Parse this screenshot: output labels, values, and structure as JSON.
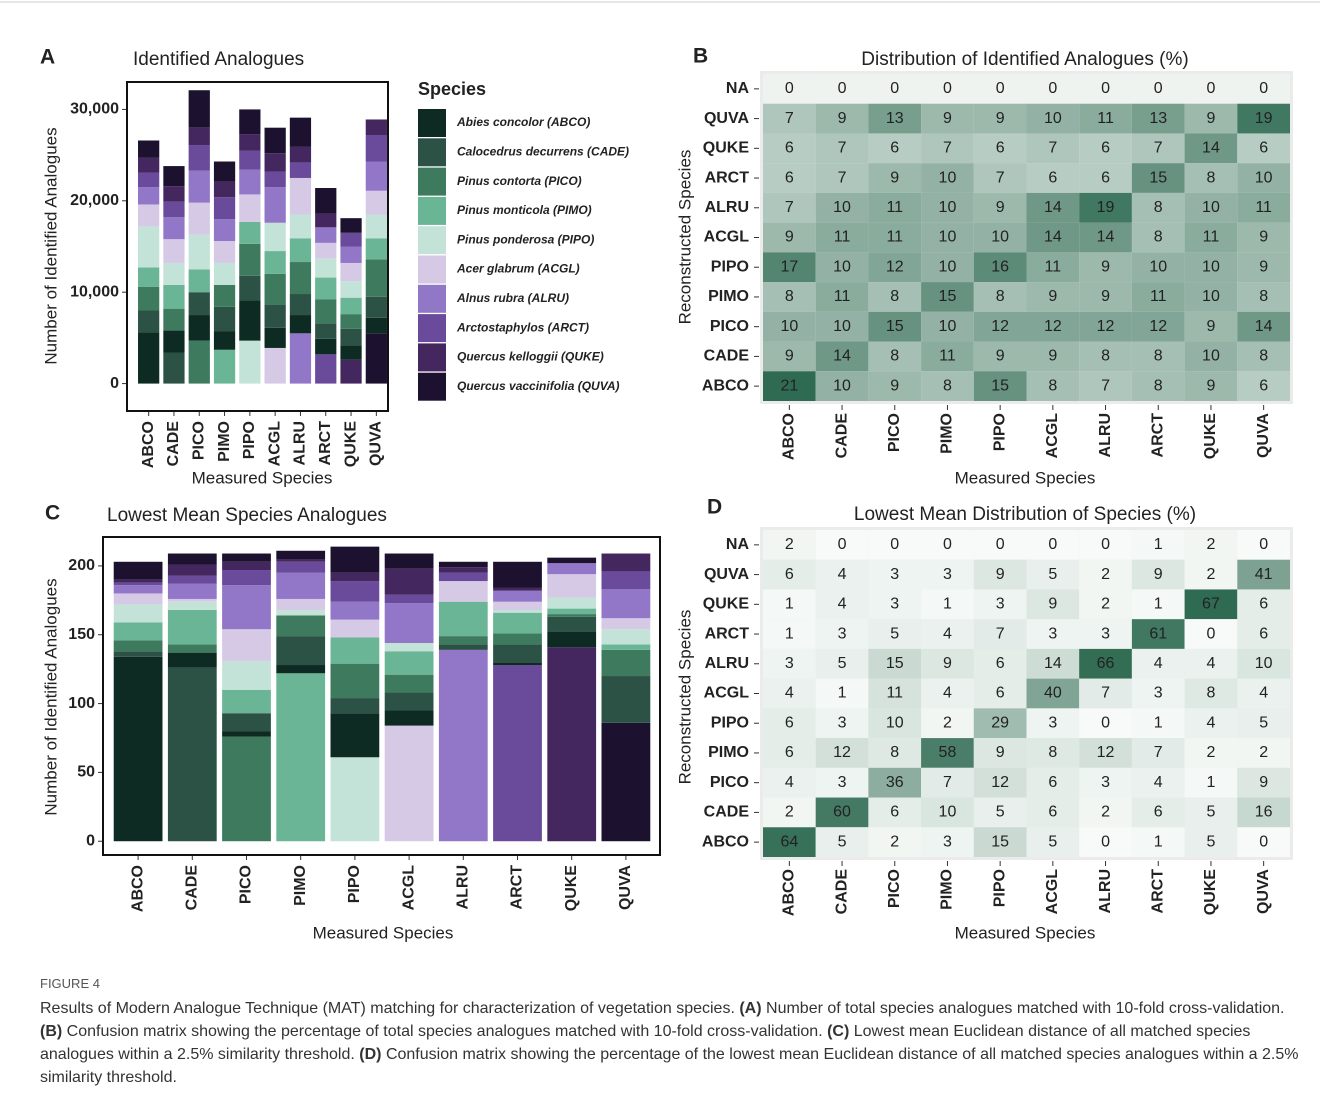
{
  "chart_data": [
    {
      "type": "stacked_bar",
      "panel": "A",
      "title": "Identified Analogues",
      "xlabel": "Measured Species",
      "ylabel": "Number of Identified Analogues",
      "categories": [
        "ABCO",
        "CADE",
        "PICO",
        "PIMO",
        "PIPO",
        "ACGL",
        "ALRU",
        "ARCT",
        "QUKE",
        "QUVA"
      ],
      "ylim": [
        -3000,
        33000
      ],
      "yticks": [
        0,
        {
          "value": 10000,
          "label": "10,000"
        },
        {
          "value": 20000,
          "label": "20,000"
        },
        {
          "value": 30000,
          "label": "30,000"
        }
      ],
      "legend_title": "Species",
      "series": [
        {
          "name": "Abies concolor (ABCO)",
          "color": "#0d2b22",
          "values": [
            5600,
            2400,
            2800,
            2000,
            4400,
            2200,
            2000,
            1700,
            1600,
            1700
          ]
        },
        {
          "name": "Calocedrus decurrens (CADE)",
          "color": "#2c5245",
          "values": [
            2400,
            3400,
            2500,
            2700,
            2700,
            2500,
            2300,
            1700,
            1800,
            2300
          ]
        },
        {
          "name": "Pinus contorta (PICO)",
          "color": "#3d7a5e",
          "values": [
            2600,
            2400,
            4700,
            2400,
            3500,
            3400,
            3500,
            2600,
            1600,
            4100
          ]
        },
        {
          "name": "Pinus monticola (PIMO)",
          "color": "#6ab596",
          "values": [
            2100,
            2600,
            2500,
            3700,
            2400,
            2500,
            2600,
            2400,
            1800,
            2300
          ]
        },
        {
          "name": "Pinus ponderosa (PIPO)",
          "color": "#c4e3d8",
          "values": [
            4500,
            2400,
            3800,
            2400,
            4700,
            3100,
            2600,
            2100,
            1800,
            2600
          ]
        },
        {
          "name": "Acer glabrum (ACGL)",
          "color": "#d5c9e6",
          "values": [
            2400,
            2600,
            3500,
            2400,
            3000,
            3900,
            4000,
            1700,
            2000,
            2600
          ]
        },
        {
          "name": "Alnus rubra (ALRU)",
          "color": "#9276c7",
          "values": [
            1900,
            2400,
            3500,
            2400,
            2700,
            3900,
            5500,
            1700,
            1800,
            3200
          ]
        },
        {
          "name": "Arctostaphylos (ARCT)",
          "color": "#6a4a9a",
          "values": [
            1600,
            1700,
            2800,
            2400,
            2100,
            1700,
            1700,
            3200,
            1500,
            2900
          ]
        },
        {
          "name": "Quercus kelloggii (QUKE)",
          "color": "#45275f",
          "values": [
            1600,
            1700,
            1900,
            1700,
            1800,
            2000,
            1700,
            1500,
            2600,
            1700
          ]
        },
        {
          "name": "Quercus vaccinifolia (QUVA)",
          "color": "#1c1230",
          "values": [
            1900,
            2200,
            4100,
            2200,
            2700,
            2800,
            3200,
            2800,
            1600,
            5500
          ]
        }
      ]
    },
    {
      "type": "heatmap",
      "panel": "B",
      "title": "Distribution of Identified Analogues (%)",
      "xlabel": "Measured Species",
      "ylabel": "Reconstructed Species",
      "x_categories": [
        "ABCO",
        "CADE",
        "PICO",
        "PIMO",
        "PIPO",
        "ACGL",
        "ALRU",
        "ARCT",
        "QUKE",
        "QUVA"
      ],
      "y_categories": [
        "NA",
        "QUVA",
        "QUKE",
        "ARCT",
        "ALRU",
        "ACGL",
        "PIPO",
        "PIMO",
        "PICO",
        "CADE",
        "ABCO"
      ],
      "colors": [
        "#eef3f0",
        "#2f6b52"
      ],
      "values": [
        [
          0,
          0,
          0,
          0,
          0,
          0,
          0,
          0,
          0,
          0
        ],
        [
          7,
          9,
          13,
          9,
          9,
          10,
          11,
          13,
          9,
          19
        ],
        [
          6,
          7,
          6,
          7,
          6,
          7,
          6,
          7,
          14,
          6
        ],
        [
          6,
          7,
          9,
          10,
          7,
          6,
          6,
          15,
          8,
          10
        ],
        [
          7,
          10,
          11,
          10,
          9,
          14,
          19,
          8,
          10,
          11
        ],
        [
          9,
          11,
          11,
          10,
          10,
          14,
          14,
          8,
          11,
          9
        ],
        [
          17,
          10,
          12,
          10,
          16,
          11,
          9,
          10,
          10,
          9
        ],
        [
          8,
          11,
          8,
          15,
          8,
          9,
          9,
          11,
          10,
          8
        ],
        [
          10,
          10,
          15,
          10,
          12,
          12,
          12,
          12,
          9,
          14
        ],
        [
          9,
          14,
          8,
          11,
          9,
          9,
          8,
          8,
          10,
          8
        ],
        [
          21,
          10,
          9,
          8,
          15,
          8,
          7,
          8,
          9,
          6
        ]
      ]
    },
    {
      "type": "stacked_bar",
      "panel": "C",
      "title": "Lowest Mean Species Analogues",
      "xlabel": "Measured Species",
      "ylabel": "Number of Identified Analogues",
      "categories": [
        "ABCO",
        "CADE",
        "PICO",
        "PIMO",
        "PIPO",
        "ACGL",
        "ALRU",
        "ARCT",
        "QUKE",
        "QUVA"
      ],
      "ylim": [
        -10,
        221
      ],
      "yticks": [
        0,
        50,
        100,
        150,
        200
      ],
      "series": [
        {
          "name": "Abies concolor (ABCO)",
          "color": "#0d2b22",
          "values": [
            134,
            11,
            4,
            6,
            32,
            11,
            0,
            2,
            11,
            0
          ]
        },
        {
          "name": "Calocedrus decurrens (CADE)",
          "color": "#2c5245",
          "values": [
            4,
            126,
            13,
            21,
            11,
            13,
            4,
            13,
            11,
            34
          ]
        },
        {
          "name": "Pinus contorta (PICO)",
          "color": "#3d7a5e",
          "values": [
            8,
            6,
            76,
            15,
            25,
            13,
            6,
            8,
            2,
            19
          ]
        },
        {
          "name": "Pinus monticola (PIMO)",
          "color": "#6ab596",
          "values": [
            13,
            25,
            17,
            122,
            19,
            17,
            25,
            15,
            4,
            4
          ]
        },
        {
          "name": "Pinus ponderosa (PIPO)",
          "color": "#c4e3d8",
          "values": [
            13,
            6,
            21,
            4,
            61,
            6,
            0,
            2,
            8,
            11
          ]
        },
        {
          "name": "Acer glabrum (ACGL)",
          "color": "#d5c9e6",
          "values": [
            8,
            2,
            23,
            8,
            13,
            84,
            15,
            6,
            17,
            8
          ]
        },
        {
          "name": "Alnus rubra (ALRU)",
          "color": "#9276c7",
          "values": [
            6,
            11,
            32,
            19,
            13,
            29,
            139,
            8,
            8,
            21
          ]
        },
        {
          "name": "Arctostaphylos (ARCT)",
          "color": "#6a4a9a",
          "values": [
            2,
            6,
            11,
            8,
            15,
            6,
            6,
            128,
            0,
            13
          ]
        },
        {
          "name": "Quercus kelloggii (QUKE)",
          "color": "#45275f",
          "values": [
            2,
            8,
            6,
            2,
            6,
            19,
            4,
            2,
            141,
            13
          ]
        },
        {
          "name": "Quercus vaccinifolia (QUVA)",
          "color": "#1c1230",
          "values": [
            13,
            8,
            6,
            6,
            19,
            11,
            4,
            19,
            4,
            86
          ]
        }
      ]
    },
    {
      "type": "heatmap",
      "panel": "D",
      "title": "Lowest Mean Distribution of Species (%)",
      "xlabel": "Measured Species",
      "ylabel": "Reconstructed Species",
      "x_categories": [
        "ABCO",
        "CADE",
        "PICO",
        "PIMO",
        "PIPO",
        "ACGL",
        "ALRU",
        "ARCT",
        "QUKE",
        "QUVA"
      ],
      "y_categories": [
        "NA",
        "QUVA",
        "QUKE",
        "ARCT",
        "ALRU",
        "ACGL",
        "PIPO",
        "PIMO",
        "PICO",
        "CADE",
        "ABCO"
      ],
      "colors": [
        "#f7faf8",
        "#2f6b52"
      ],
      "values": [
        [
          2,
          0,
          0,
          0,
          0,
          0,
          0,
          1,
          2,
          0
        ],
        [
          6,
          4,
          3,
          3,
          9,
          5,
          2,
          9,
          2,
          41
        ],
        [
          1,
          4,
          3,
          1,
          3,
          9,
          2,
          1,
          67,
          6
        ],
        [
          1,
          3,
          5,
          4,
          7,
          3,
          3,
          61,
          0,
          6
        ],
        [
          3,
          5,
          15,
          9,
          6,
          14,
          66,
          4,
          4,
          10
        ],
        [
          4,
          1,
          11,
          4,
          6,
          40,
          7,
          3,
          8,
          4
        ],
        [
          6,
          3,
          10,
          2,
          29,
          3,
          0,
          1,
          4,
          5
        ],
        [
          6,
          12,
          8,
          58,
          9,
          8,
          12,
          7,
          2,
          2
        ],
        [
          4,
          3,
          36,
          7,
          12,
          6,
          3,
          4,
          1,
          9
        ],
        [
          2,
          60,
          6,
          10,
          5,
          6,
          2,
          6,
          5,
          16
        ],
        [
          64,
          5,
          2,
          3,
          15,
          5,
          0,
          1,
          5,
          0
        ]
      ]
    }
  ],
  "figure": {
    "label": "FIGURE 4",
    "caption": [
      {
        "text": "Results of Modern Analogue Technique (MAT) matching for characterization of vegetation species. "
      },
      {
        "text": "(A)",
        "bold": true
      },
      {
        "text": " Number of total species analogues matched with 10-fold cross-validation. "
      },
      {
        "text": "(B)",
        "bold": true
      },
      {
        "text": " Confusion matrix showing the percentage of total species analogues matched with 10-fold cross-validation. "
      },
      {
        "text": "(C)",
        "bold": true
      },
      {
        "text": " Lowest mean Euclidean distance of all matched species analogues within a 2.5% similarity threshold. "
      },
      {
        "text": "(D)",
        "bold": true
      },
      {
        "text": " Confusion matrix showing the percentage of the lowest mean Euclidean distance of all matched species analogues within a 2.5% similarity threshold."
      }
    ]
  }
}
